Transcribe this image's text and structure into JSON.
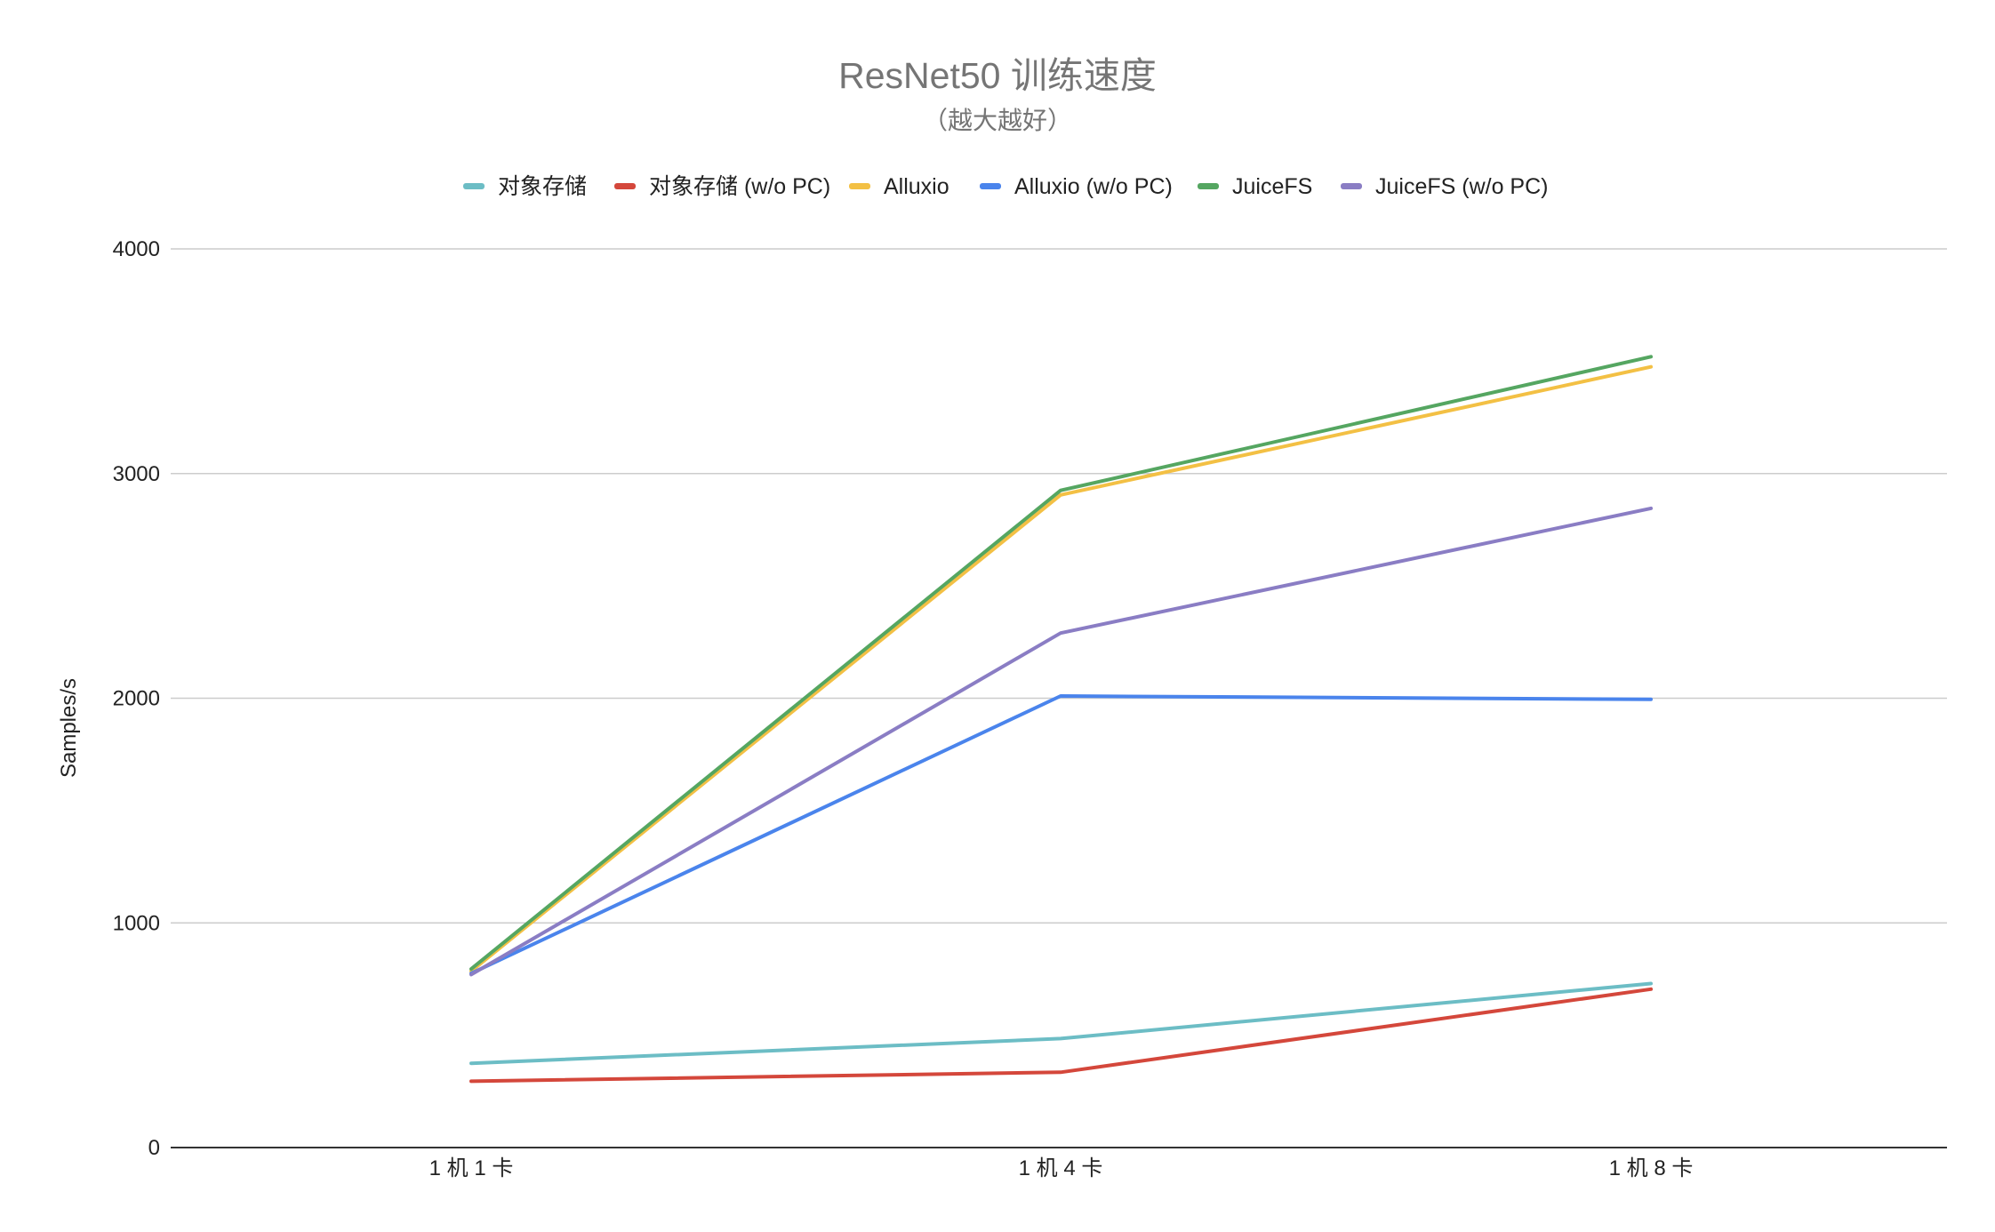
{
  "chart_data": {
    "type": "line",
    "title": "ResNet50 训练速度",
    "subtitle": "（越大越好）",
    "xlabel": "",
    "ylabel": "Samples/s",
    "categories": [
      "1 机 1 卡",
      "1 机 4 卡",
      "1 机 8 卡"
    ],
    "ylim": [
      0,
      4000
    ],
    "yticks": [
      0,
      1000,
      2000,
      3000,
      4000
    ],
    "grid": true,
    "legend_position": "top",
    "series": [
      {
        "name": "对象存储",
        "color": "#6cbdc5",
        "values": [
          375,
          485,
          730
        ]
      },
      {
        "name": "对象存储 (w/o PC)",
        "color": "#d4473b",
        "values": [
          295,
          335,
          705
        ]
      },
      {
        "name": "Alluxio",
        "color": "#f3c044",
        "values": [
          785,
          2905,
          3475
        ]
      },
      {
        "name": "Alluxio (w/o PC)",
        "color": "#4a84ec",
        "values": [
          775,
          2010,
          1995
        ]
      },
      {
        "name": "JuiceFS",
        "color": "#55a661",
        "values": [
          795,
          2925,
          3520
        ]
      },
      {
        "name": "JuiceFS (w/o PC)",
        "color": "#8a7dc4",
        "values": [
          770,
          2290,
          2845
        ]
      }
    ]
  }
}
